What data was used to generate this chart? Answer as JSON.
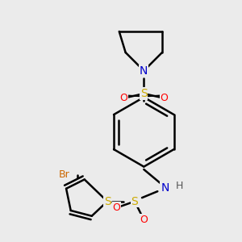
{
  "background_color": "#ebebeb",
  "atom_colors": {
    "C": "#000000",
    "N": "#0000cc",
    "S": "#ccaa00",
    "O": "#ff0000",
    "Br": "#cc6600",
    "H": "#555555"
  },
  "bond_color": "#000000",
  "bond_width": 1.8,
  "figsize": [
    3.0,
    3.0
  ],
  "dpi": 100
}
